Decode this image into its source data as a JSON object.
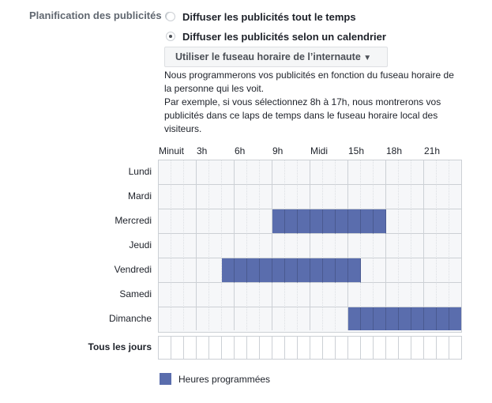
{
  "section_label": "Planification des publicités",
  "info_icon": "i",
  "options": [
    {
      "label": "Diffuser les publicités tout le temps",
      "selected": false
    },
    {
      "label": "Diffuser les publicités selon un calendrier",
      "selected": true
    }
  ],
  "timezone_dropdown": "Utiliser le fuseau horaire de l’internaute",
  "description": [
    "Nous programmerons vos publicités en fonction du fuseau horaire de",
    "la personne qui les voit.",
    "Par exemple, si vous sélectionnez 8h à 17h, nous montrerons vos",
    "publicités dans ce laps de temps dans le fuseau horaire local des",
    "visiteurs."
  ],
  "hours": [
    "Minuit",
    "3h",
    "6h",
    "9h",
    "Midi",
    "15h",
    "18h",
    "21h"
  ],
  "days": [
    "Lundi",
    "Mardi",
    "Mercredi",
    "Jeudi",
    "Vendredi",
    "Samedi",
    "Dimanche"
  ],
  "all_days_label": "Tous les jours",
  "schedule": {
    "Mercredi": [
      9,
      18
    ],
    "Vendredi": [
      5,
      16
    ],
    "Dimanche": [
      15,
      24
    ]
  },
  "legend": "Heures programmées",
  "colors": {
    "scheduled": "#5a6dad"
  }
}
